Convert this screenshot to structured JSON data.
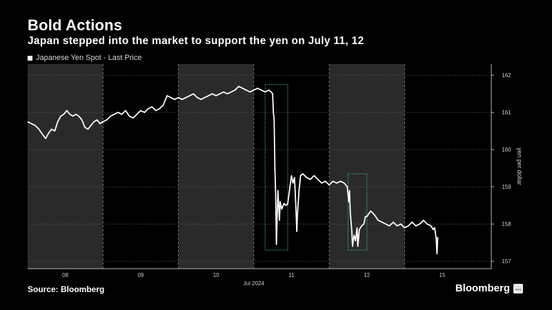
{
  "title": "Bold Actions",
  "subtitle": "Japan stepped into the market to support the yen on July 11, 12",
  "source": "Source: Bloomberg",
  "brand": "Bloomberg",
  "colors": {
    "background": "#000000",
    "line": "#ffffff",
    "weekend_shade": "#2a2a2a",
    "intervention_box": "#3fbfa5",
    "grid": "#555555"
  },
  "chart_data": {
    "type": "line",
    "title": "Bold Actions",
    "subtitle": "Japan stepped into the market to support the yen on July 11, 12",
    "legend": [
      "Japanese Yen Spot - Last Price"
    ],
    "ylabel": "yen per dollar",
    "xlabel": "Jul 2024",
    "x_ticks": [
      "08",
      "09",
      "10",
      "11",
      "12",
      "15"
    ],
    "y_ticks": [
      157,
      158,
      159,
      160,
      161,
      162
    ],
    "ylim": [
      156.8,
      162.3
    ],
    "xlim": [
      0,
      6.15
    ],
    "grid": "horizontal dotted",
    "legend_position": "top-left",
    "shaded_periods": [
      [
        0,
        1.0
      ],
      [
        2.0,
        3.0
      ],
      [
        4.0,
        5.0
      ]
    ],
    "intervention_boxes": [
      {
        "x": [
          3.15,
          3.45
        ],
        "y": [
          157.3,
          161.75
        ]
      },
      {
        "x": [
          4.25,
          4.5
        ],
        "y": [
          157.3,
          159.35
        ]
      }
    ],
    "series": [
      {
        "name": "Japanese Yen Spot - Last Price",
        "points": [
          [
            0.0,
            160.75
          ],
          [
            0.05,
            160.7
          ],
          [
            0.1,
            160.65
          ],
          [
            0.15,
            160.55
          ],
          [
            0.2,
            160.4
          ],
          [
            0.24,
            160.3
          ],
          [
            0.28,
            160.45
          ],
          [
            0.32,
            160.55
          ],
          [
            0.36,
            160.5
          ],
          [
            0.4,
            160.75
          ],
          [
            0.44,
            160.9
          ],
          [
            0.48,
            160.95
          ],
          [
            0.52,
            161.05
          ],
          [
            0.56,
            160.95
          ],
          [
            0.6,
            160.9
          ],
          [
            0.64,
            160.95
          ],
          [
            0.68,
            160.9
          ],
          [
            0.72,
            160.8
          ],
          [
            0.76,
            160.6
          ],
          [
            0.8,
            160.55
          ],
          [
            0.84,
            160.65
          ],
          [
            0.88,
            160.75
          ],
          [
            0.92,
            160.8
          ],
          [
            0.96,
            160.7
          ],
          [
            1.0,
            160.75
          ],
          [
            1.05,
            160.8
          ],
          [
            1.1,
            160.9
          ],
          [
            1.15,
            160.95
          ],
          [
            1.2,
            161.0
          ],
          [
            1.25,
            160.95
          ],
          [
            1.3,
            161.05
          ],
          [
            1.35,
            160.9
          ],
          [
            1.4,
            160.85
          ],
          [
            1.45,
            160.95
          ],
          [
            1.5,
            161.05
          ],
          [
            1.55,
            161.0
          ],
          [
            1.6,
            161.1
          ],
          [
            1.65,
            161.15
          ],
          [
            1.7,
            161.05
          ],
          [
            1.75,
            161.1
          ],
          [
            1.8,
            161.2
          ],
          [
            1.85,
            161.45
          ],
          [
            1.9,
            161.4
          ],
          [
            1.95,
            161.35
          ],
          [
            2.0,
            161.4
          ],
          [
            2.05,
            161.35
          ],
          [
            2.1,
            161.4
          ],
          [
            2.15,
            161.45
          ],
          [
            2.2,
            161.5
          ],
          [
            2.25,
            161.4
          ],
          [
            2.3,
            161.35
          ],
          [
            2.35,
            161.4
          ],
          [
            2.4,
            161.45
          ],
          [
            2.45,
            161.5
          ],
          [
            2.5,
            161.45
          ],
          [
            2.55,
            161.5
          ],
          [
            2.6,
            161.55
          ],
          [
            2.65,
            161.5
          ],
          [
            2.7,
            161.55
          ],
          [
            2.75,
            161.6
          ],
          [
            2.8,
            161.7
          ],
          [
            2.85,
            161.65
          ],
          [
            2.9,
            161.6
          ],
          [
            2.95,
            161.55
          ],
          [
            3.0,
            161.6
          ],
          [
            3.05,
            161.65
          ],
          [
            3.1,
            161.6
          ],
          [
            3.15,
            161.55
          ],
          [
            3.2,
            161.6
          ],
          [
            3.23,
            161.55
          ],
          [
            3.25,
            161.5
          ],
          [
            3.26,
            161.0
          ],
          [
            3.27,
            160.8
          ],
          [
            3.28,
            159.5
          ],
          [
            3.29,
            158.8
          ],
          [
            3.3,
            157.45
          ],
          [
            3.31,
            158.2
          ],
          [
            3.32,
            158.9
          ],
          [
            3.33,
            158.5
          ],
          [
            3.34,
            158.1
          ],
          [
            3.35,
            158.6
          ],
          [
            3.37,
            158.4
          ],
          [
            3.4,
            158.55
          ],
          [
            3.43,
            158.5
          ],
          [
            3.45,
            158.55
          ],
          [
            3.5,
            159.3
          ],
          [
            3.52,
            159.1
          ],
          [
            3.54,
            159.25
          ],
          [
            3.56,
            158.4
          ],
          [
            3.57,
            157.8
          ],
          [
            3.58,
            158.3
          ],
          [
            3.6,
            158.9
          ],
          [
            3.62,
            159.3
          ],
          [
            3.65,
            159.35
          ],
          [
            3.7,
            159.25
          ],
          [
            3.75,
            159.2
          ],
          [
            3.8,
            159.3
          ],
          [
            3.85,
            159.2
          ],
          [
            3.9,
            159.1
          ],
          [
            3.95,
            159.15
          ],
          [
            4.0,
            159.05
          ],
          [
            4.05,
            159.15
          ],
          [
            4.1,
            159.1
          ],
          [
            4.15,
            159.15
          ],
          [
            4.2,
            159.1
          ],
          [
            4.24,
            159.0
          ],
          [
            4.25,
            158.8
          ],
          [
            4.26,
            158.6
          ],
          [
            4.27,
            158.9
          ],
          [
            4.28,
            158.3
          ],
          [
            4.3,
            157.8
          ],
          [
            4.31,
            157.4
          ],
          [
            4.33,
            157.7
          ],
          [
            4.35,
            157.55
          ],
          [
            4.37,
            157.9
          ],
          [
            4.38,
            157.4
          ],
          [
            4.4,
            157.85
          ],
          [
            4.43,
            157.95
          ],
          [
            4.46,
            158.0
          ],
          [
            4.48,
            158.2
          ],
          [
            4.5,
            158.2
          ],
          [
            4.55,
            158.35
          ],
          [
            4.6,
            158.25
          ],
          [
            4.65,
            158.1
          ],
          [
            4.7,
            158.05
          ],
          [
            4.75,
            158.0
          ],
          [
            4.8,
            157.95
          ],
          [
            4.85,
            158.05
          ],
          [
            4.9,
            157.95
          ],
          [
            4.95,
            158.0
          ],
          [
            5.0,
            157.9
          ],
          [
            5.05,
            157.95
          ],
          [
            5.1,
            158.05
          ],
          [
            5.15,
            157.95
          ],
          [
            5.2,
            158.0
          ],
          [
            5.25,
            158.1
          ],
          [
            5.3,
            158.0
          ],
          [
            5.35,
            157.95
          ],
          [
            5.38,
            157.85
          ],
          [
            5.4,
            157.9
          ],
          [
            5.42,
            157.6
          ],
          [
            5.43,
            157.2
          ],
          [
            5.44,
            157.65
          ]
        ]
      }
    ]
  }
}
